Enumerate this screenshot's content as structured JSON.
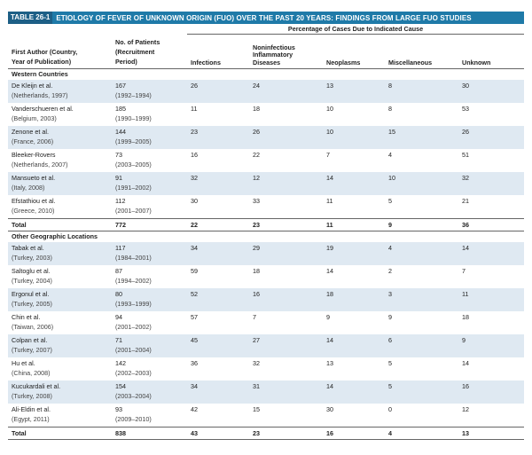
{
  "table": {
    "tag": "TABLE 26-1",
    "title": "ETIOLOGY OF FEVER OF UNKNOWN ORIGIN (FUO) OVER THE PAST 20 YEARS: FINDINGS FROM LARGE FUO STUDIES",
    "percentage_header": "Percentage of Cases Due to Indicated Cause",
    "columns": {
      "author": [
        "First Author (Country,",
        "Year of Publication)"
      ],
      "patients": [
        "No. of Patients",
        "(Recruitment",
        "Period)"
      ],
      "infections": "Infections",
      "noninfectious": [
        "Noninfectious",
        "Inflammatory",
        "Diseases"
      ],
      "neoplasms": "Neoplasms",
      "misc": "Miscellaneous",
      "unknown": "Unknown"
    },
    "sections": [
      {
        "name": "Western Countries",
        "rows": [
          {
            "author": "De Kleijn et al.",
            "origin": "(Netherlands, 1997)",
            "n": "167",
            "period": "(1992–1994)",
            "inf": "26",
            "nid": "24",
            "neo": "13",
            "misc": "8",
            "unk": "30"
          },
          {
            "author": "Vanderschueren et al.",
            "origin": "(Belgium, 2003)",
            "n": "185",
            "period": "(1990–1999)",
            "inf": "11",
            "nid": "18",
            "neo": "10",
            "misc": "8",
            "unk": "53"
          },
          {
            "author": "Zenone et al.",
            "origin": "(France, 2006)",
            "n": "144",
            "period": "(1999–2005)",
            "inf": "23",
            "nid": "26",
            "neo": "10",
            "misc": "15",
            "unk": "26"
          },
          {
            "author": "Bleeker-Rovers",
            "origin": "(Netherlands, 2007)",
            "n": "73",
            "period": "(2003–2005)",
            "inf": "16",
            "nid": "22",
            "neo": "7",
            "misc": "4",
            "unk": "51"
          },
          {
            "author": "Mansueto et al.",
            "origin": "(Italy, 2008)",
            "n": "91",
            "period": "(1991–2002)",
            "inf": "32",
            "nid": "12",
            "neo": "14",
            "misc": "10",
            "unk": "32"
          },
          {
            "author": "Efstathiou et al.",
            "origin": "(Greece, 2010)",
            "n": "112",
            "period": "(2001–2007)",
            "inf": "30",
            "nid": "33",
            "neo": "11",
            "misc": "5",
            "unk": "21"
          }
        ],
        "total": {
          "label": "Total",
          "n": "772",
          "inf": "22",
          "nid": "23",
          "neo": "11",
          "misc": "9",
          "unk": "36"
        }
      },
      {
        "name": "Other Geographic Locations",
        "rows": [
          {
            "author": "Tabak et al.",
            "origin": "(Turkey, 2003)",
            "n": "117",
            "period": "(1984–2001)",
            "inf": "34",
            "nid": "29",
            "neo": "19",
            "misc": "4",
            "unk": "14"
          },
          {
            "author": "Saltoglu et al.",
            "origin": "(Turkey, 2004)",
            "n": "87",
            "period": "(1994–2002)",
            "inf": "59",
            "nid": "18",
            "neo": "14",
            "misc": "2",
            "unk": "7"
          },
          {
            "author": "Ergonul et al.",
            "origin": "(Turkey, 2005)",
            "n": "80",
            "period": "(1993–1999)",
            "inf": "52",
            "nid": "16",
            "neo": "18",
            "misc": "3",
            "unk": "11"
          },
          {
            "author": "Chin et al.",
            "origin": "(Taiwan, 2006)",
            "n": "94",
            "period": "(2001–2002)",
            "inf": "57",
            "nid": "7",
            "neo": "9",
            "misc": "9",
            "unk": "18"
          },
          {
            "author": "Colpan et al.",
            "origin": "(Turkey, 2007)",
            "n": "71",
            "period": "(2001–2004)",
            "inf": "45",
            "nid": "27",
            "neo": "14",
            "misc": "6",
            "unk": "9"
          },
          {
            "author": "Hu et al.",
            "origin": "(China, 2008)",
            "n": "142",
            "period": "(2002–2003)",
            "inf": "36",
            "nid": "32",
            "neo": "13",
            "misc": "5",
            "unk": "14"
          },
          {
            "author": "Kucukardali et al.",
            "origin": "(Turkey, 2008)",
            "n": "154",
            "period": "(2003–2004)",
            "inf": "34",
            "nid": "31",
            "neo": "14",
            "misc": "5",
            "unk": "16"
          },
          {
            "author": "Ali-Eldin et al.",
            "origin": "(Egypt, 2011)",
            "n": "93",
            "period": "(2009–2010)",
            "inf": "42",
            "nid": "15",
            "neo": "30",
            "misc": "0",
            "unk": "12"
          }
        ],
        "total": {
          "label": "Total",
          "n": "838",
          "inf": "43",
          "nid": "23",
          "neo": "16",
          "misc": "4",
          "unk": "13"
        }
      }
    ]
  },
  "colors": {
    "title_bar": "#1f7aa8",
    "tag_bg": "#1d5f86",
    "row_shade": "#dfe9f2"
  }
}
